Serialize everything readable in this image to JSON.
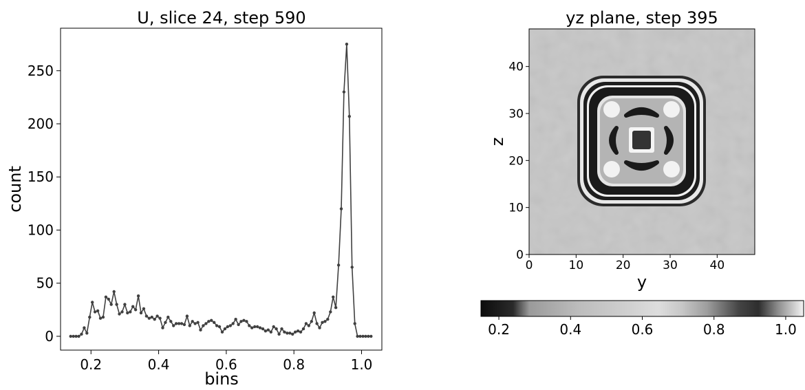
{
  "chart_data": [
    {
      "type": "line",
      "title": "U, slice 24, step 590",
      "xlabel": "bins",
      "ylabel": "count",
      "xlim": [
        0.11,
        1.06
      ],
      "ylim": [
        -13,
        290
      ],
      "xticks": [
        "0.2",
        "0.4",
        "0.6",
        "0.8",
        "1.0"
      ],
      "yticks": [
        "0",
        "50",
        "100",
        "150",
        "200",
        "250"
      ],
      "grid": false,
      "legend": "none",
      "line_color": "#404040",
      "marker": "star",
      "x": [
        0.14,
        0.148,
        0.156,
        0.164,
        0.172,
        0.18,
        0.188,
        0.196,
        0.204,
        0.212,
        0.22,
        0.228,
        0.236,
        0.244,
        0.252,
        0.26,
        0.268,
        0.276,
        0.284,
        0.292,
        0.3,
        0.308,
        0.316,
        0.324,
        0.332,
        0.34,
        0.348,
        0.356,
        0.364,
        0.372,
        0.38,
        0.388,
        0.396,
        0.404,
        0.412,
        0.42,
        0.428,
        0.436,
        0.444,
        0.452,
        0.46,
        0.468,
        0.476,
        0.484,
        0.492,
        0.5,
        0.508,
        0.516,
        0.524,
        0.532,
        0.54,
        0.548,
        0.556,
        0.564,
        0.572,
        0.58,
        0.588,
        0.596,
        0.604,
        0.612,
        0.62,
        0.628,
        0.636,
        0.644,
        0.652,
        0.66,
        0.668,
        0.676,
        0.684,
        0.692,
        0.7,
        0.708,
        0.716,
        0.724,
        0.732,
        0.74,
        0.748,
        0.756,
        0.764,
        0.772,
        0.78,
        0.788,
        0.796,
        0.804,
        0.812,
        0.82,
        0.828,
        0.836,
        0.844,
        0.852,
        0.86,
        0.868,
        0.876,
        0.884,
        0.892,
        0.9,
        0.908,
        0.916,
        0.924,
        0.932,
        0.94,
        0.948,
        0.956,
        0.964,
        0.972,
        0.98,
        0.988,
        0.996,
        1.004,
        1.012,
        1.02,
        1.028
      ],
      "y": [
        0,
        0,
        0,
        0,
        2,
        8,
        3,
        18,
        32,
        23,
        24,
        17,
        18,
        37,
        35,
        30,
        42,
        30,
        21,
        23,
        30,
        22,
        23,
        28,
        25,
        38,
        22,
        26,
        19,
        17,
        18,
        16,
        19,
        17,
        8,
        13,
        18,
        14,
        10,
        12,
        12,
        12,
        11,
        19,
        10,
        14,
        12,
        13,
        6,
        10,
        12,
        14,
        15,
        13,
        10,
        9,
        4,
        7,
        9,
        10,
        12,
        16,
        11,
        14,
        15,
        14,
        10,
        8,
        9,
        9,
        8,
        7,
        5,
        6,
        4,
        9,
        7,
        2,
        7,
        4,
        3,
        3,
        2,
        4,
        5,
        4,
        7,
        12,
        10,
        14,
        22,
        12,
        8,
        13,
        14,
        16,
        23,
        37,
        27,
        67,
        120,
        230,
        275,
        207,
        65,
        12,
        0,
        0,
        0,
        0,
        0,
        0
      ],
      "y_trimmed_note_hidden": ""
    },
    {
      "type": "heatmap",
      "title": "yz plane, step 395",
      "xlabel": "y",
      "ylabel": "z",
      "xlim": [
        0,
        48
      ],
      "ylim": [
        0,
        48
      ],
      "xticks": [
        "0",
        "10",
        "20",
        "30",
        "40"
      ],
      "yticks": [
        "0",
        "10",
        "20",
        "30",
        "40"
      ],
      "colormap": "gray",
      "colorbar": {
        "orientation": "horizontal",
        "range": [
          0.15,
          1.05
        ],
        "ticks": [
          "0.2",
          "0.4",
          "0.6",
          "0.8",
          "1.0"
        ]
      },
      "background_value": 0.78,
      "center": [
        24,
        24
      ],
      "center_square_value": 0.35,
      "ring_values": [
        0.3,
        0.95
      ]
    }
  ]
}
